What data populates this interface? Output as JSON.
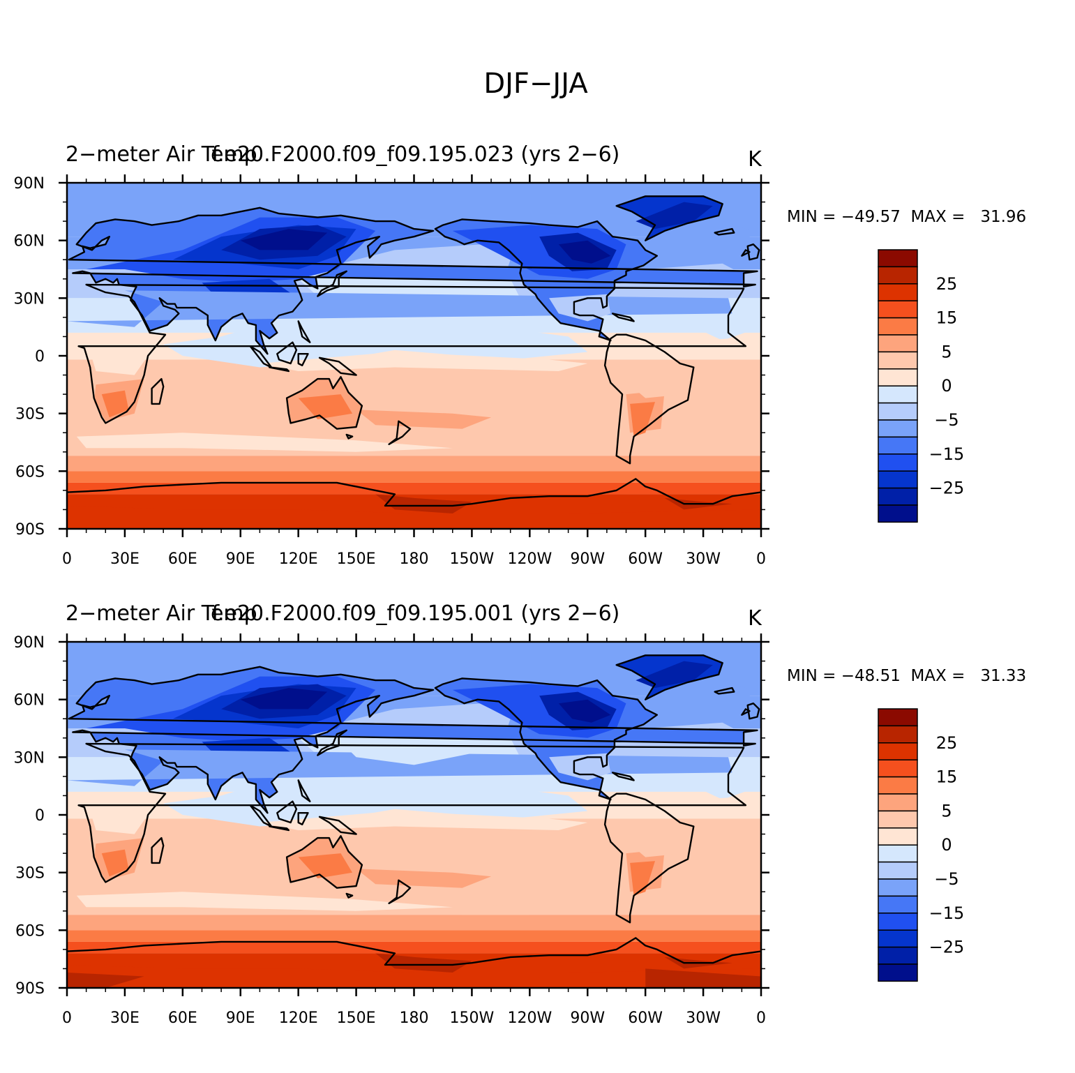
{
  "figure_title": "DJF−JJA",
  "panels": [
    {
      "left_title": "2−meter Air Temp",
      "center_title": "f.e20.F2000.f09_f09.195.023 (yrs 2−6)",
      "units": "K",
      "stats": "MIN = −49.57  MAX =   31.96",
      "min": -49.57,
      "max": 31.96
    },
    {
      "left_title": "2−meter Air Temp",
      "center_title": "f.e20.F2000.f09_f09.195.001 (yrs 2−6)",
      "units": "K",
      "stats": "MIN = −48.51  MAX =   31.33",
      "min": -48.51,
      "max": 31.33
    }
  ],
  "axes": {
    "lon_ticks": [
      "0",
      "30E",
      "60E",
      "90E",
      "120E",
      "150E",
      "180",
      "150W",
      "120W",
      "90W",
      "60W",
      "30W",
      "0"
    ],
    "lat_ticks": [
      "90N",
      "60N",
      "30N",
      "0",
      "30S",
      "60S",
      "90S"
    ]
  },
  "colorbar": {
    "levels": [
      -30,
      -25,
      -20,
      -15,
      -10,
      -5,
      -2,
      0,
      2,
      5,
      10,
      15,
      20,
      25,
      30
    ],
    "labels": [
      "25",
      "15",
      "5",
      "0",
      "−5",
      "−15",
      "−25"
    ],
    "colors": [
      "#000f8c",
      "#0020a8",
      "#0535cd",
      "#2050f0",
      "#4677f6",
      "#7aa3f9",
      "#b5ccfb",
      "#d5e7fd",
      "#ffe5d4",
      "#fec8ad",
      "#fda47d",
      "#fb7b45",
      "#f5501e",
      "#dd3300",
      "#b82500",
      "#8b0a00"
    ]
  },
  "chart_data": [
    {
      "type": "heatmap",
      "title": "2−meter Air Temp — f.e20.F2000.f09_f09.195.023 (yrs 2−6)",
      "variable": "2-meter air temperature difference DJF−JJA",
      "units": "K",
      "x_range": [
        0,
        360
      ],
      "y_range": [
        -90,
        90
      ],
      "xlabel": "",
      "ylabel": "",
      "min": -49.57,
      "max": 31.96,
      "contour_levels": [
        -30,
        -25,
        -20,
        -15,
        -10,
        -5,
        -2,
        0,
        2,
        5,
        10,
        15,
        20,
        25,
        30
      ]
    },
    {
      "type": "heatmap",
      "title": "2−meter Air Temp — f.e20.F2000.f09_f09.195.001 (yrs 2−6)",
      "variable": "2-meter air temperature difference DJF−JJA",
      "units": "K",
      "x_range": [
        0,
        360
      ],
      "y_range": [
        -90,
        90
      ],
      "xlabel": "",
      "ylabel": "",
      "min": -48.51,
      "max": 31.33,
      "contour_levels": [
        -30,
        -25,
        -20,
        -15,
        -10,
        -5,
        -2,
        0,
        2,
        5,
        10,
        15,
        20,
        25,
        30
      ]
    }
  ]
}
